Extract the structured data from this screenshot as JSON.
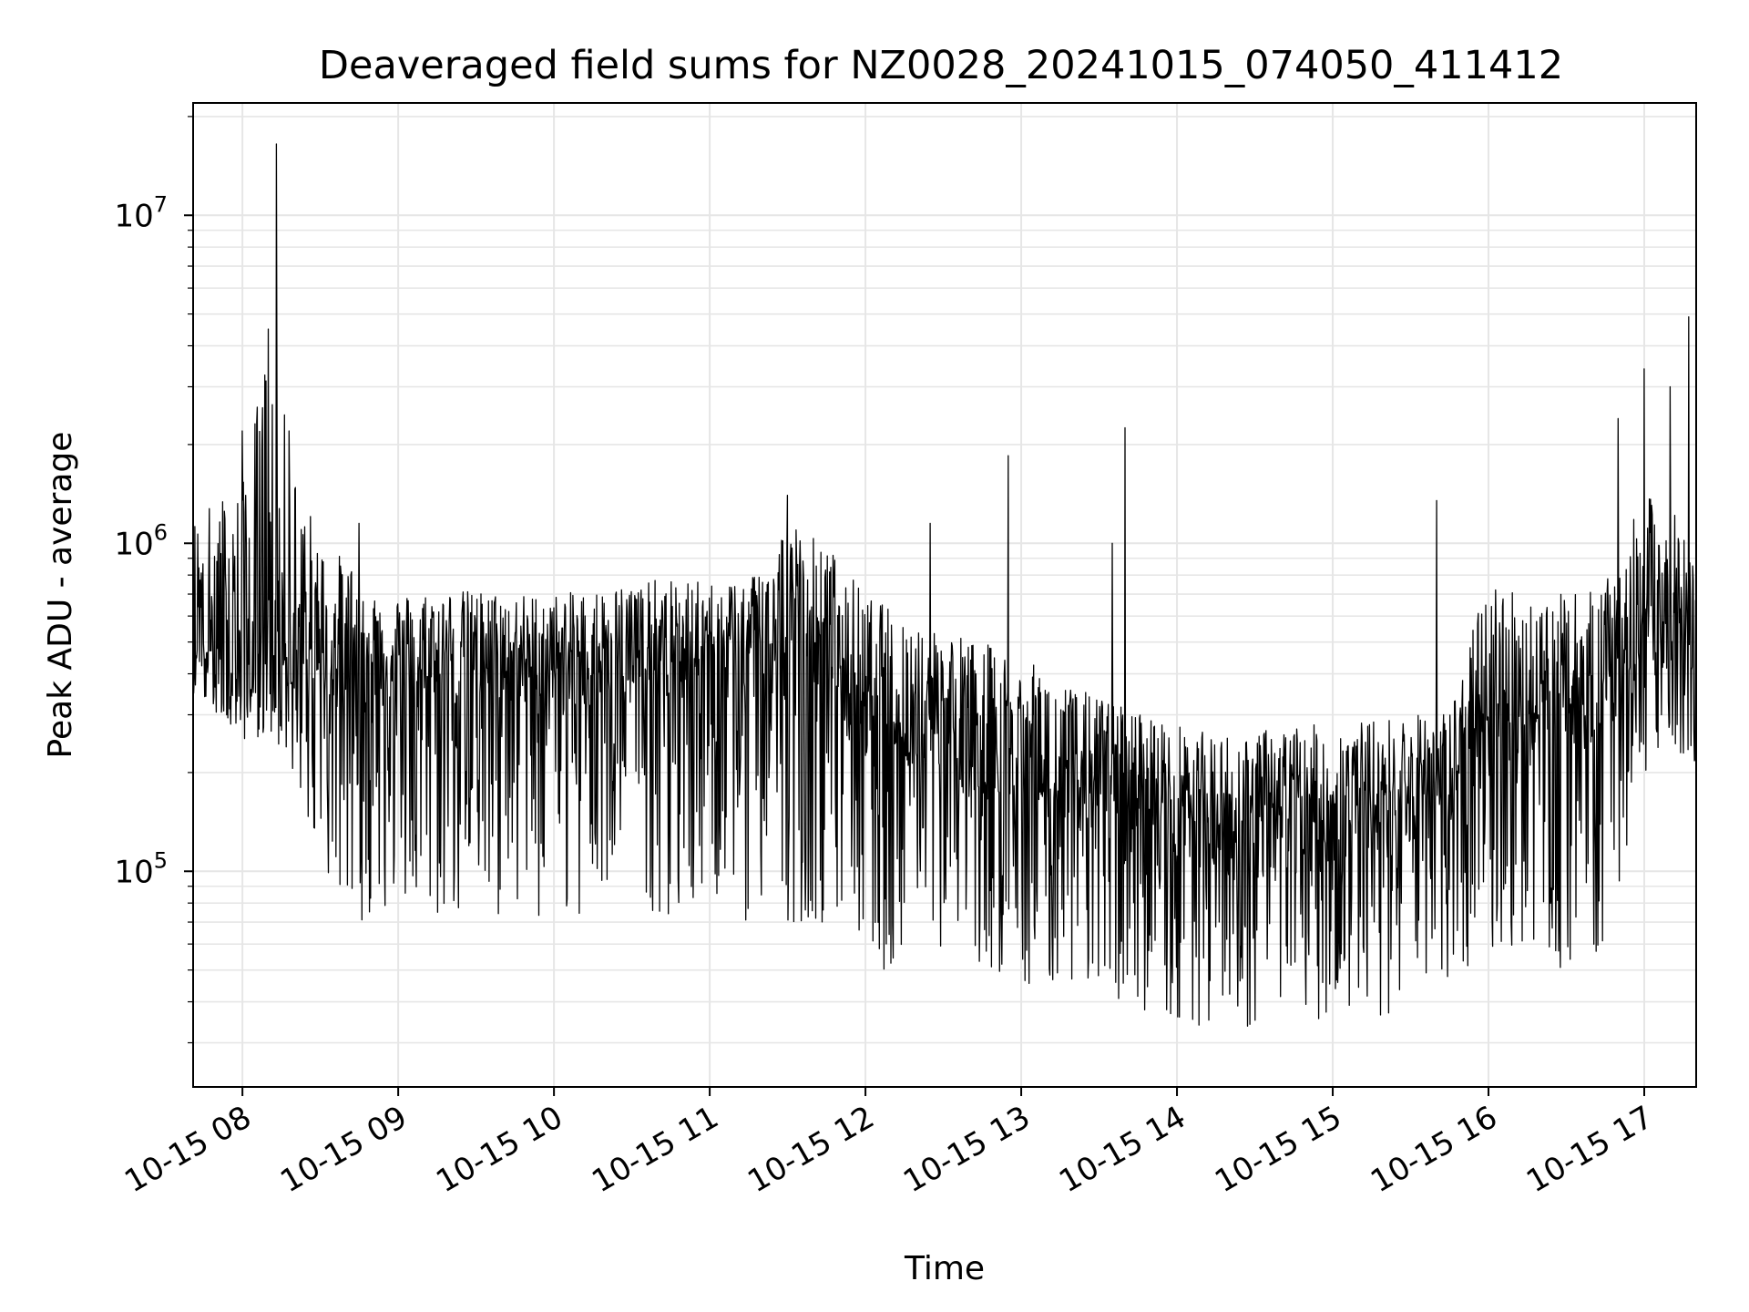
{
  "chart_data": {
    "type": "line",
    "title": "Deaveraged field sums for NZ0028_20241015_074050_411412",
    "xlabel": "Time",
    "ylabel": "Peak ADU - average",
    "y_scale": "log",
    "grid": true,
    "line_color": "#000000",
    "grid_color": "#e6e6e6",
    "xlim": [
      "2024-10-15 07:41",
      "2024-10-15 17:20"
    ],
    "ylim": [
      22000,
      22000000
    ],
    "x_ticks": [
      {
        "value": "2024-10-15 08:00",
        "label": "10-15 08"
      },
      {
        "value": "2024-10-15 09:00",
        "label": "10-15 09"
      },
      {
        "value": "2024-10-15 10:00",
        "label": "10-15 10"
      },
      {
        "value": "2024-10-15 11:00",
        "label": "10-15 11"
      },
      {
        "value": "2024-10-15 12:00",
        "label": "10-15 12"
      },
      {
        "value": "2024-10-15 13:00",
        "label": "10-15 13"
      },
      {
        "value": "2024-10-15 14:00",
        "label": "10-15 14"
      },
      {
        "value": "2024-10-15 15:00",
        "label": "10-15 15"
      },
      {
        "value": "2024-10-15 16:00",
        "label": "10-15 16"
      },
      {
        "value": "2024-10-15 17:00",
        "label": "10-15 17"
      }
    ],
    "y_ticks": [
      {
        "value": 100000,
        "base": "10",
        "exp": "5"
      },
      {
        "value": 1000000,
        "base": "10",
        "exp": "6"
      },
      {
        "value": 10000000,
        "base": "10",
        "exp": "7"
      }
    ],
    "series": [
      {
        "x": [
          "2024-10-15 07:41",
          "2024-10-15 07:50",
          "2024-10-15 08:00",
          "2024-10-15 08:10",
          "2024-10-15 08:20",
          "2024-10-15 08:30",
          "2024-10-15 08:40",
          "2024-10-15 08:50",
          "2024-10-15 09:00",
          "2024-10-15 09:15",
          "2024-10-15 09:30",
          "2024-10-15 09:45",
          "2024-10-15 10:00",
          "2024-10-15 10:15",
          "2024-10-15 10:30",
          "2024-10-15 10:45",
          "2024-10-15 11:00",
          "2024-10-15 11:15",
          "2024-10-15 11:30",
          "2024-10-15 11:45",
          "2024-10-15 12:00",
          "2024-10-15 12:15",
          "2024-10-15 12:30",
          "2024-10-15 12:45",
          "2024-10-15 13:00",
          "2024-10-15 13:15",
          "2024-10-15 13:30",
          "2024-10-15 13:45",
          "2024-10-15 14:00",
          "2024-10-15 14:15",
          "2024-10-15 14:30",
          "2024-10-15 14:45",
          "2024-10-15 15:00",
          "2024-10-15 15:15",
          "2024-10-15 15:30",
          "2024-10-15 15:45",
          "2024-10-15 16:00",
          "2024-10-15 16:15",
          "2024-10-15 16:30",
          "2024-10-15 16:45",
          "2024-10-15 17:00",
          "2024-10-15 17:10",
          "2024-10-15 17:20"
        ],
        "y_median": [
          550000,
          450000,
          420000,
          500000,
          380000,
          420000,
          420000,
          400000,
          400000,
          420000,
          420000,
          400000,
          400000,
          420000,
          420000,
          430000,
          420000,
          430000,
          440000,
          460000,
          300000,
          280000,
          260000,
          230000,
          200000,
          180000,
          170000,
          160000,
          150000,
          130000,
          130000,
          140000,
          140000,
          150000,
          160000,
          170000,
          280000,
          300000,
          290000,
          320000,
          600000,
          500000,
          550000
        ],
        "y_high": [
          1200000,
          1400000,
          1500000,
          4400000,
          1800000,
          1000000,
          900000,
          750000,
          700000,
          720000,
          720000,
          700000,
          700000,
          720000,
          760000,
          780000,
          760000,
          800000,
          1200000,
          1000000,
          700000,
          600000,
          550000,
          500000,
          450000,
          380000,
          340000,
          310000,
          280000,
          260000,
          270000,
          280000,
          280000,
          290000,
          300000,
          310000,
          800000,
          700000,
          700000,
          750000,
          1400000,
          1300000,
          1000000
        ],
        "y_low": [
          350000,
          300000,
          250000,
          260000,
          200000,
          100000,
          70000,
          70000,
          80000,
          70000,
          70000,
          70000,
          70000,
          70000,
          70000,
          70000,
          80000,
          70000,
          70000,
          70000,
          50000,
          50000,
          50000,
          50000,
          45000,
          45000,
          40000,
          38000,
          35000,
          33000,
          33000,
          35000,
          35000,
          36000,
          38000,
          40000,
          55000,
          55000,
          50000,
          55000,
          200000,
          250000,
          200000
        ],
        "spikes": [
          {
            "x": "2024-10-15 08:00",
            "y": 2200000
          },
          {
            "x": "2024-10-15 08:10",
            "y": 4500000
          },
          {
            "x": "2024-10-15 08:13",
            "y": 16500000
          },
          {
            "x": "2024-10-15 08:18",
            "y": 2200000
          },
          {
            "x": "2024-10-15 08:45",
            "y": 1150000
          },
          {
            "x": "2024-10-15 11:30",
            "y": 1400000
          },
          {
            "x": "2024-10-15 12:25",
            "y": 1150000
          },
          {
            "x": "2024-10-15 12:55",
            "y": 1850000
          },
          {
            "x": "2024-10-15 13:35",
            "y": 1000000
          },
          {
            "x": "2024-10-15 13:40",
            "y": 2250000
          },
          {
            "x": "2024-10-15 15:40",
            "y": 1350000
          },
          {
            "x": "2024-10-15 16:50",
            "y": 2400000
          },
          {
            "x": "2024-10-15 17:00",
            "y": 3400000
          },
          {
            "x": "2024-10-15 17:10",
            "y": 3000000
          },
          {
            "x": "2024-10-15 17:17",
            "y": 4900000
          }
        ]
      }
    ]
  }
}
